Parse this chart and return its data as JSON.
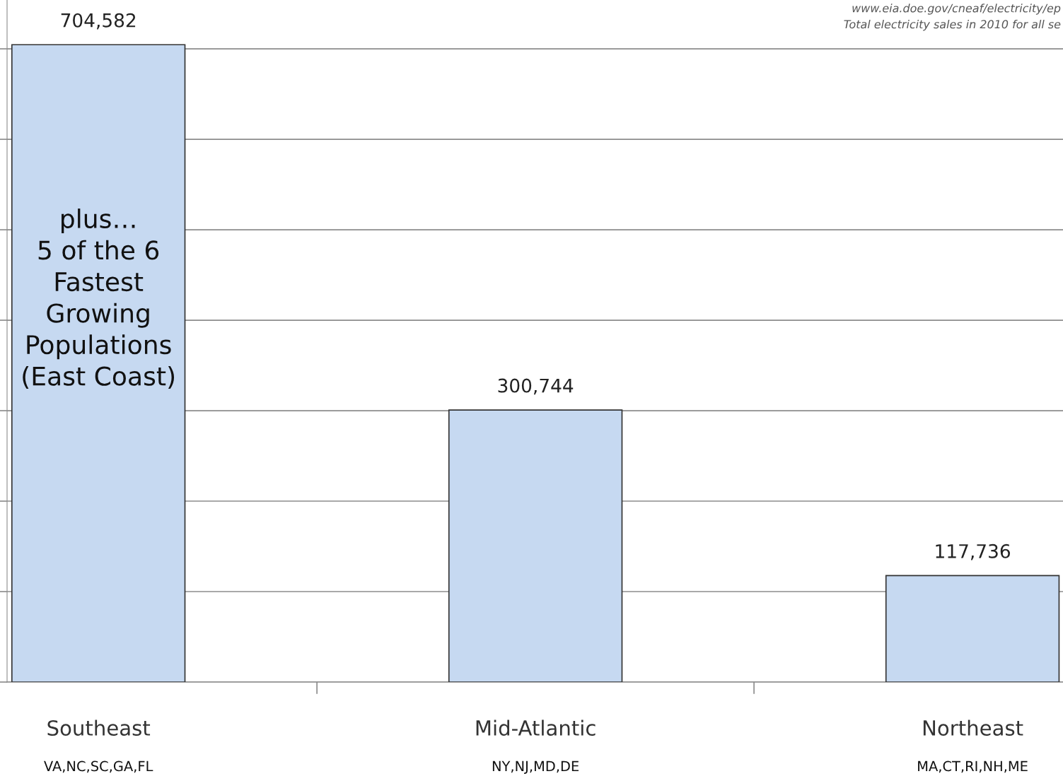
{
  "chart_data": {
    "type": "bar",
    "categories": [
      "Southeast\nVA,NC,SC,GA,FL",
      "Mid-Atlantic\nNY,NJ,MD,DE",
      "Northeast\nMA,CT,RI,NH,ME"
    ],
    "values": [
      704582,
      300744,
      117736
    ],
    "color": "#c6d9f1",
    "value_labels": [
      "704,582",
      "300,744",
      "117,736"
    ],
    "ylim": [
      0,
      754000
    ],
    "yticks": [
      {
        "value": 0,
        "label": null
      },
      {
        "value": 100000,
        "label": null
      },
      {
        "value": 200000,
        "label": null
      },
      {
        "value": 300000,
        "label": null
      },
      {
        "value": 400000,
        "label": null
      },
      {
        "value": 500000,
        "label": null
      },
      {
        "value": 600000,
        "label": null
      },
      {
        "value": 700000,
        "label": null
      }
    ],
    "tick_labels": "x",
    "grid": "y",
    "annotations": [
      "plus…\n5 of the 6\nFastest\nGrowing\nPopulations\n(East Coast)",
      "www.eia.doe.gov/cneaf/electricity/ep\nTotal electricity sales in 2010 for all se"
    ]
  }
}
